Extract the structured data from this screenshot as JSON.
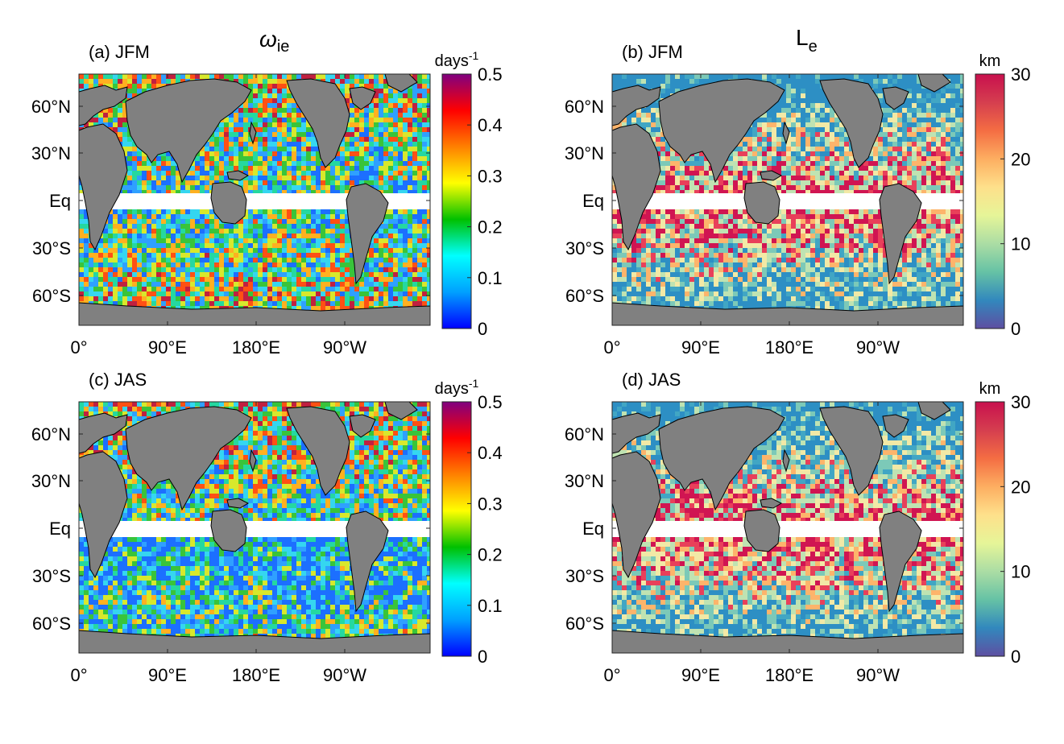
{
  "figure": {
    "column_titles": {
      "left": {
        "symbol": "ω",
        "subscript": "ie"
      },
      "right": {
        "symbol": "L",
        "subscript": "e"
      }
    },
    "lat_ticks": [
      "60°N",
      "30°N",
      "Eq",
      "30°S",
      "60°S"
    ],
    "lon_ticks": [
      "0°",
      "90°E",
      "180°E",
      "90°W"
    ],
    "land_color": "#808080",
    "mask_color": "#ffffff"
  },
  "panels": [
    {
      "id": "a",
      "label": "(a) JFM",
      "variable": "omega_ie",
      "season": "JFM",
      "colorbar": {
        "unit_base": "days",
        "unit_exp": "-1",
        "ticks": [
          "0.5",
          "0.4",
          "0.3",
          "0.2",
          "0.1",
          "0"
        ],
        "range": [
          0,
          0.5
        ],
        "colormap": "jet",
        "colors": [
          "#0000ff",
          "#00a0ff",
          "#00ffff",
          "#00c000",
          "#ffff00",
          "#ff8000",
          "#ff0000",
          "#800080"
        ]
      },
      "field_palette": [
        "#1c6fff",
        "#2fa0ff",
        "#35d6f0",
        "#25d8a0",
        "#39c43a",
        "#d8e82c",
        "#ffb020",
        "#ff5014",
        "#c02040"
      ]
    },
    {
      "id": "b",
      "label": "(b) JFM",
      "variable": "L_e",
      "season": "JFM",
      "colorbar": {
        "unit_base": "km",
        "unit_exp": "",
        "ticks": [
          "30",
          "20",
          "10",
          "0"
        ],
        "range": [
          0,
          30
        ],
        "colormap": "spectral",
        "colors": [
          "#5e4fa2",
          "#3288bd",
          "#66c2a5",
          "#abdda4",
          "#e6f598",
          "#fee08b",
          "#fdae61",
          "#f46d43",
          "#d53e4f",
          "#c8104e"
        ]
      },
      "field_palette": [
        "#2d8fc4",
        "#41a6c4",
        "#7cc9b8",
        "#bfe3b2",
        "#f2e9a6",
        "#fdb46b",
        "#e8405a",
        "#d01552"
      ]
    },
    {
      "id": "c",
      "label": "(c) JAS",
      "variable": "omega_ie",
      "season": "JAS",
      "colorbar": {
        "unit_base": "days",
        "unit_exp": "-1",
        "ticks": [
          "0.5",
          "0.4",
          "0.3",
          "0.2",
          "0.1",
          "0"
        ],
        "range": [
          0,
          0.5
        ],
        "colormap": "jet",
        "colors": [
          "#0000ff",
          "#00a0ff",
          "#00ffff",
          "#00c000",
          "#ffff00",
          "#ff8000",
          "#ff0000",
          "#800080"
        ]
      },
      "field_palette": [
        "#1c6fff",
        "#2fa0ff",
        "#35d6f0",
        "#25d8a0",
        "#39c43a",
        "#d8e82c",
        "#ffb020",
        "#ff5014",
        "#c02040"
      ]
    },
    {
      "id": "d",
      "label": "(d) JAS",
      "variable": "L_e",
      "season": "JAS",
      "colorbar": {
        "unit_base": "km",
        "unit_exp": "",
        "ticks": [
          "30",
          "20",
          "10",
          "0"
        ],
        "range": [
          0,
          30
        ],
        "colormap": "spectral",
        "colors": [
          "#5e4fa2",
          "#3288bd",
          "#66c2a5",
          "#abdda4",
          "#e6f598",
          "#fee08b",
          "#fdae61",
          "#f46d43",
          "#d53e4f",
          "#c8104e"
        ]
      },
      "field_palette": [
        "#2d8fc4",
        "#41a6c4",
        "#7cc9b8",
        "#bfe3b2",
        "#f2e9a6",
        "#fdb46b",
        "#e8405a",
        "#d01552"
      ]
    }
  ]
}
